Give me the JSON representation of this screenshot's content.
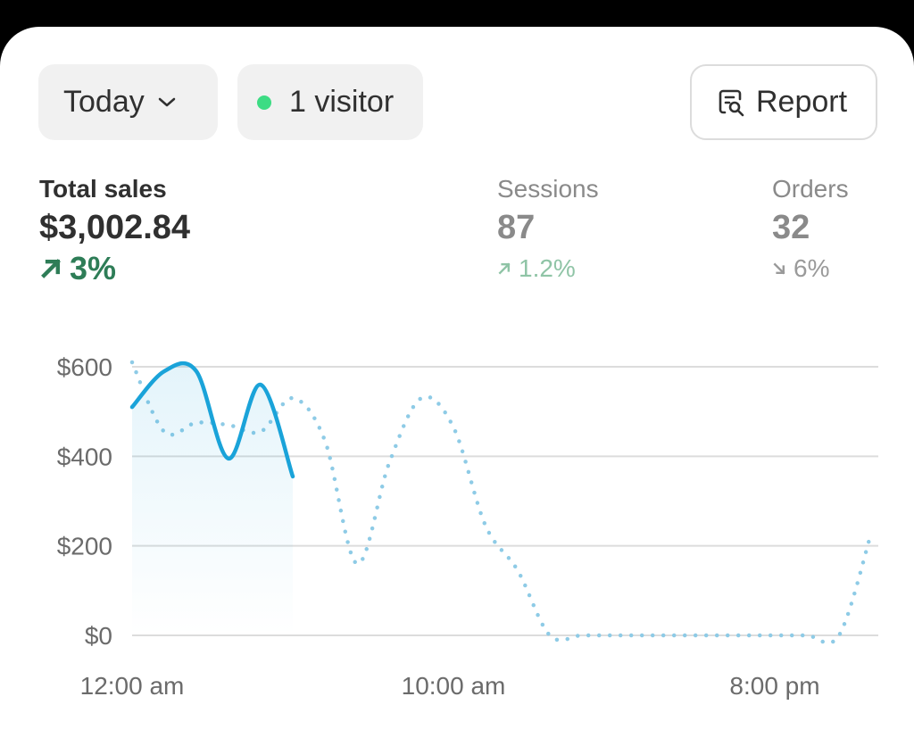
{
  "controls": {
    "period": "Today",
    "visitors": "1 visitor",
    "report": "Report"
  },
  "metrics": [
    {
      "label": "Total sales",
      "value": "$3,002.84",
      "change": "3%",
      "trend": "up"
    },
    {
      "label": "Sessions",
      "value": "87",
      "change": "1.2%",
      "trend": "up"
    },
    {
      "label": "Orders",
      "value": "32",
      "change": "6%",
      "trend": "down"
    }
  ],
  "chart_data": {
    "type": "line",
    "categories": [
      "12:00 am",
      null,
      null,
      null,
      null,
      null,
      null,
      null,
      null,
      null,
      "10:00 am",
      null,
      null,
      null,
      null,
      null,
      null,
      null,
      null,
      null,
      "8:00 pm",
      null,
      null,
      null
    ],
    "series": [
      {
        "color": "#1aa3d9",
        "style": "solid",
        "values": [
          510,
          590,
          590,
          395,
          560,
          355,
          null,
          null,
          null,
          null,
          null,
          null,
          null,
          null,
          null,
          null,
          null,
          null,
          null,
          null,
          null,
          null,
          null,
          null
        ]
      },
      {
        "color": "#8ecbe6",
        "style": "dotted",
        "values": [
          610,
          455,
          475,
          470,
          455,
          530,
          435,
          160,
          385,
          530,
          465,
          245,
          145,
          0,
          0,
          0,
          0,
          0,
          0,
          0,
          0,
          0,
          0,
          228
        ]
      }
    ],
    "ylim": [
      0,
      620
    ],
    "yticks": [
      {
        "value": 0,
        "label": "$0"
      },
      {
        "value": 200,
        "label": "$200"
      },
      {
        "value": 400,
        "label": "$400"
      },
      {
        "value": 600,
        "label": "$600"
      }
    ],
    "grid": true
  }
}
